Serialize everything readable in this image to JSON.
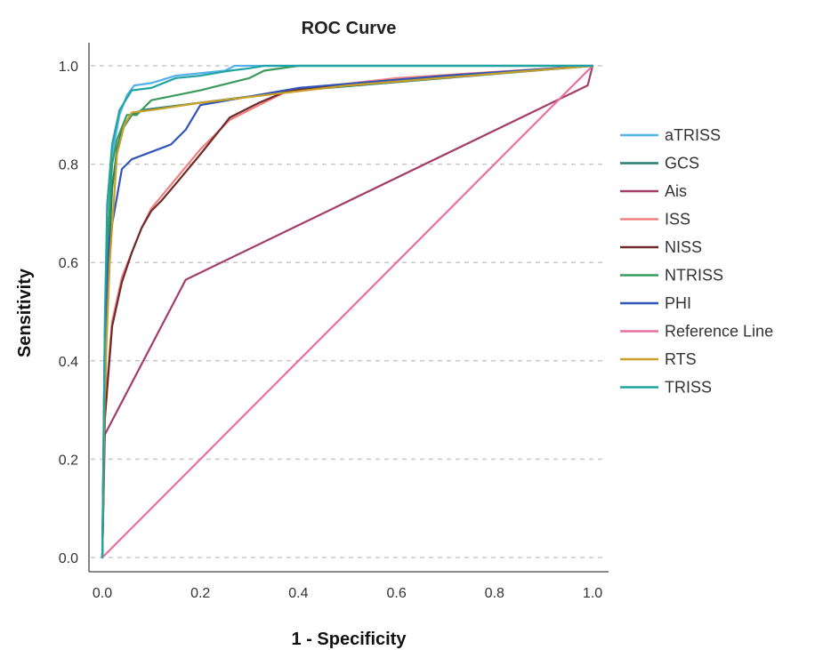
{
  "chart_data": {
    "type": "line",
    "title": "ROC Curve",
    "xlabel": "1 - Specificity",
    "ylabel": "Sensitivity",
    "xlim": [
      0,
      1
    ],
    "ylim": [
      0,
      1
    ],
    "xticks": [
      "0.0",
      "0.2",
      "0.4",
      "0.6",
      "0.8",
      "1.0"
    ],
    "yticks": [
      "0.0",
      "0.2",
      "0.4",
      "0.6",
      "0.8",
      "1.0"
    ],
    "grid": "horizontal-dashed",
    "legend_position": "right",
    "series": [
      {
        "name": "aTRISS",
        "color": "#55b0ea",
        "points": [
          [
            0,
            0
          ],
          [
            0.005,
            0.45
          ],
          [
            0.01,
            0.7
          ],
          [
            0.02,
            0.82
          ],
          [
            0.035,
            0.9
          ],
          [
            0.05,
            0.94
          ],
          [
            0.065,
            0.96
          ],
          [
            0.1,
            0.965
          ],
          [
            0.15,
            0.98
          ],
          [
            0.25,
            0.99
          ],
          [
            0.27,
            1.0
          ],
          [
            1,
            1
          ]
        ]
      },
      {
        "name": "GCS",
        "color": "#277e73",
        "points": [
          [
            0,
            0
          ],
          [
            0.005,
            0.3
          ],
          [
            0.01,
            0.55
          ],
          [
            0.02,
            0.75
          ],
          [
            0.03,
            0.83
          ],
          [
            0.04,
            0.87
          ],
          [
            0.06,
            0.9
          ],
          [
            0.08,
            0.91
          ],
          [
            0.2,
            0.925
          ],
          [
            0.4,
            0.95
          ],
          [
            0.7,
            0.975
          ],
          [
            1,
            1
          ]
        ]
      },
      {
        "name": "Ais",
        "color": "#a33d68",
        "points": [
          [
            0,
            0
          ],
          [
            0.005,
            0.25
          ],
          [
            0.17,
            0.565
          ],
          [
            0.99,
            0.96
          ],
          [
            1,
            1
          ]
        ]
      },
      {
        "name": "ISS",
        "color": "#f08080",
        "points": [
          [
            0,
            0
          ],
          [
            0.005,
            0.3
          ],
          [
            0.02,
            0.48
          ],
          [
            0.04,
            0.57
          ],
          [
            0.06,
            0.62
          ],
          [
            0.08,
            0.67
          ],
          [
            0.1,
            0.71
          ],
          [
            0.15,
            0.77
          ],
          [
            0.2,
            0.83
          ],
          [
            0.26,
            0.89
          ],
          [
            0.32,
            0.92
          ],
          [
            0.38,
            0.95
          ],
          [
            0.6,
            0.975
          ],
          [
            1,
            1
          ]
        ]
      },
      {
        "name": "NISS",
        "color": "#6e2a2a",
        "points": [
          [
            0,
            0
          ],
          [
            0.005,
            0.28
          ],
          [
            0.02,
            0.47
          ],
          [
            0.04,
            0.56
          ],
          [
            0.06,
            0.62
          ],
          [
            0.08,
            0.67
          ],
          [
            0.1,
            0.705
          ],
          [
            0.12,
            0.725
          ],
          [
            0.15,
            0.76
          ],
          [
            0.2,
            0.82
          ],
          [
            0.26,
            0.895
          ],
          [
            0.32,
            0.925
          ],
          [
            0.38,
            0.95
          ],
          [
            0.6,
            0.97
          ],
          [
            1,
            1
          ]
        ]
      },
      {
        "name": "NTRISS",
        "color": "#3a9a58",
        "points": [
          [
            0,
            0
          ],
          [
            0.005,
            0.4
          ],
          [
            0.01,
            0.62
          ],
          [
            0.02,
            0.8
          ],
          [
            0.03,
            0.85
          ],
          [
            0.05,
            0.9
          ],
          [
            0.07,
            0.9
          ],
          [
            0.1,
            0.93
          ],
          [
            0.15,
            0.94
          ],
          [
            0.2,
            0.95
          ],
          [
            0.3,
            0.975
          ],
          [
            0.33,
            0.99
          ],
          [
            0.4,
            1.0
          ],
          [
            1,
            1
          ]
        ]
      },
      {
        "name": "PHI",
        "color": "#3054b8",
        "points": [
          [
            0,
            0
          ],
          [
            0.005,
            0.45
          ],
          [
            0.015,
            0.65
          ],
          [
            0.04,
            0.79
          ],
          [
            0.06,
            0.81
          ],
          [
            0.1,
            0.825
          ],
          [
            0.14,
            0.84
          ],
          [
            0.17,
            0.87
          ],
          [
            0.2,
            0.92
          ],
          [
            0.4,
            0.955
          ],
          [
            0.7,
            0.98
          ],
          [
            1,
            1
          ]
        ]
      },
      {
        "name": "Reference Line",
        "color": "#e870a0",
        "points": [
          [
            0,
            0
          ],
          [
            1,
            1
          ]
        ]
      },
      {
        "name": "RTS",
        "color": "#c8a028",
        "points": [
          [
            0,
            0
          ],
          [
            0.005,
            0.35
          ],
          [
            0.015,
            0.6
          ],
          [
            0.03,
            0.82
          ],
          [
            0.045,
            0.88
          ],
          [
            0.06,
            0.905
          ],
          [
            0.1,
            0.91
          ],
          [
            0.2,
            0.925
          ],
          [
            0.5,
            0.96
          ],
          [
            1,
            1
          ]
        ]
      },
      {
        "name": "TRISS",
        "color": "#1fa3a3",
        "points": [
          [
            0,
            0
          ],
          [
            0.005,
            0.48
          ],
          [
            0.01,
            0.72
          ],
          [
            0.02,
            0.84
          ],
          [
            0.035,
            0.91
          ],
          [
            0.06,
            0.95
          ],
          [
            0.1,
            0.955
          ],
          [
            0.15,
            0.975
          ],
          [
            0.2,
            0.98
          ],
          [
            0.26,
            0.99
          ],
          [
            0.3,
            0.995
          ],
          [
            0.33,
            1.0
          ],
          [
            1,
            1
          ]
        ]
      }
    ]
  }
}
